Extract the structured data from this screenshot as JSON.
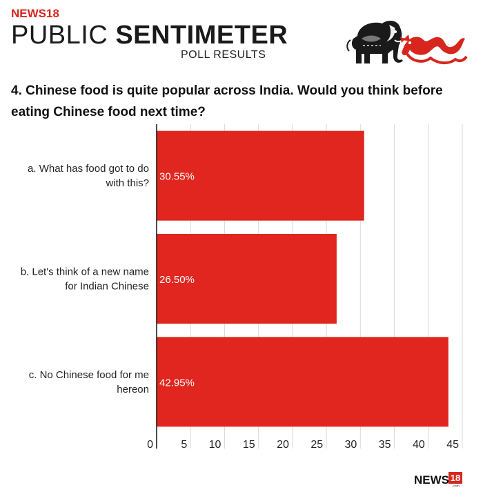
{
  "header": {
    "brand_small": "NEWS18",
    "title_light": "PUBLIC ",
    "title_bold": "SENTIMETER",
    "subtitle": "POLL RESULTS",
    "elephant_icon": "elephant-icon",
    "dragon_icon": "dragon-icon"
  },
  "question": "4.  Chinese food is quite popular across India. Would you think before eating Chinese food next time?",
  "chart_data": {
    "type": "bar",
    "orientation": "horizontal",
    "categories": [
      [
        "a. What has food got to do",
        "with this?"
      ],
      [
        "b. Let's think of a new name",
        "for Indian Chinese"
      ],
      [
        "c. No Chinese food for me",
        "hereon"
      ]
    ],
    "values": [
      30.55,
      26.5,
      42.95
    ],
    "data_labels": [
      "30.55%",
      "26.50%",
      "42.95%"
    ],
    "xlim": [
      0,
      45
    ],
    "xticks": [
      0,
      5,
      10,
      15,
      20,
      25,
      30,
      35,
      40,
      45
    ],
    "grid": true,
    "bar_color": "#e0261f",
    "grid_color": "#d9d9d9"
  },
  "footer": {
    "logo_text": "NEWS",
    "logo_num": "18",
    "logo_com": ".com"
  }
}
